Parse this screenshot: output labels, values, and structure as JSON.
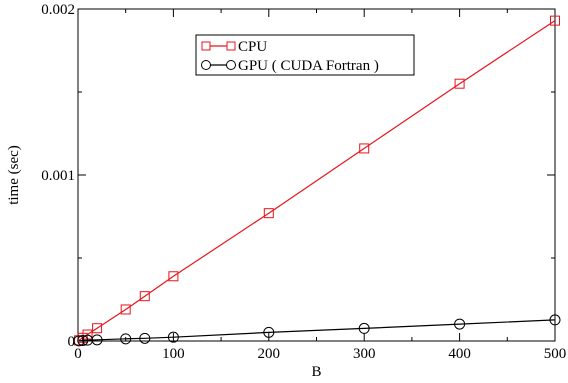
{
  "chart_data": {
    "type": "line",
    "title": "",
    "xlabel": "B",
    "ylabel": "time (sec)",
    "xlim": [
      0,
      500
    ],
    "ylim": [
      0,
      0.002
    ],
    "xticks": [
      0,
      100,
      200,
      300,
      400,
      500
    ],
    "xtick_labels": [
      "0",
      "100",
      "200",
      "300",
      "400",
      "500"
    ],
    "yticks": [
      0,
      0.001,
      0.002
    ],
    "ytick_labels": [
      "0",
      "0.001",
      "0.002"
    ],
    "grid": false,
    "legend_position": "top-center",
    "series": [
      {
        "name": "CPU",
        "color": "#e8141c",
        "marker": "square",
        "x": [
          1,
          5,
          10,
          20,
          50,
          70,
          100,
          200,
          300,
          400,
          500
        ],
        "y": [
          4e-06,
          1.9e-05,
          3.9e-05,
          7.7e-05,
          0.00019,
          0.00027,
          0.00039,
          0.00077,
          0.00116,
          0.00155,
          0.00193
        ]
      },
      {
        "name": "GPU ( CUDA Fortran )",
        "color": "#000000",
        "marker": "circle",
        "x": [
          1,
          5,
          10,
          20,
          50,
          70,
          100,
          200,
          300,
          400,
          500
        ],
        "y": [
          1e-06,
          3e-06,
          5e-06,
          7e-06,
          1.3e-05,
          1.6e-05,
          2.3e-05,
          5.2e-05,
          7.6e-05,
          0.000102,
          0.000127
        ]
      }
    ]
  }
}
